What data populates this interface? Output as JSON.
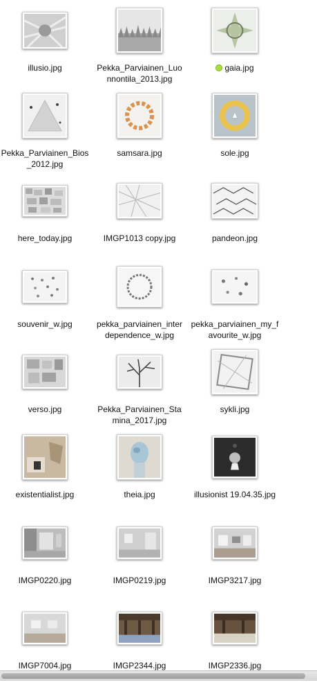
{
  "files": [
    {
      "name": "illusio.jpg"
    },
    {
      "name": "Pekka_Parviainen_Luonnontila_2013.jpg"
    },
    {
      "name": "gaia.jpg",
      "tag_color": "#a6de3a"
    },
    {
      "name": "Pekka_Parviainen_Bios_2012.jpg"
    },
    {
      "name": "samsara.jpg"
    },
    {
      "name": "sole.jpg"
    },
    {
      "name": "here_today.jpg"
    },
    {
      "name": "IMGP1013 copy.jpg"
    },
    {
      "name": "pandeon.jpg"
    },
    {
      "name": "souvenir_w.jpg"
    },
    {
      "name": "pekka_parviainen_interdependence_w.jpg"
    },
    {
      "name": "pekka_parviainen_my_favourite_w.jpg"
    },
    {
      "name": "verso.jpg"
    },
    {
      "name": "Pekka_Parviainen_Stamina_2017.jpg"
    },
    {
      "name": "sykli.jpg"
    },
    {
      "name": "existentialist.jpg"
    },
    {
      "name": "theia.jpg"
    },
    {
      "name": "illusionist 19.04.35.jpg"
    },
    {
      "name": "IMGP0220.jpg"
    },
    {
      "name": "IMGP0219.jpg"
    },
    {
      "name": "IMGP3217.jpg"
    },
    {
      "name": "IMGP7004.jpg"
    },
    {
      "name": "IMGP2344.jpg"
    },
    {
      "name": "IMGP2336.jpg"
    }
  ]
}
